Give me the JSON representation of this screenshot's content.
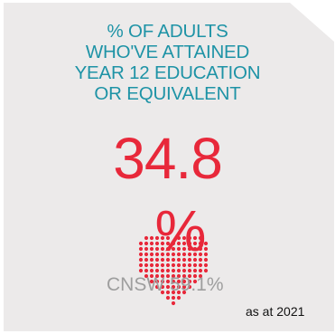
{
  "card": {
    "heading_lines": [
      "% OF ADULTS",
      "WHO'VE ATTAINED",
      "YEAR 12 EDUCATION",
      "OR EQUIVALENT"
    ],
    "value": "34.8",
    "unit": "%",
    "comparison": "CNSW 59.1%",
    "as_at": "as at 2021"
  },
  "colors": {
    "heading": "#1e93a6",
    "accent": "#e8283a",
    "muted": "#9e9e9e",
    "background": "#eceaea"
  },
  "icons": {
    "heart": "dotted-heart-icon"
  }
}
